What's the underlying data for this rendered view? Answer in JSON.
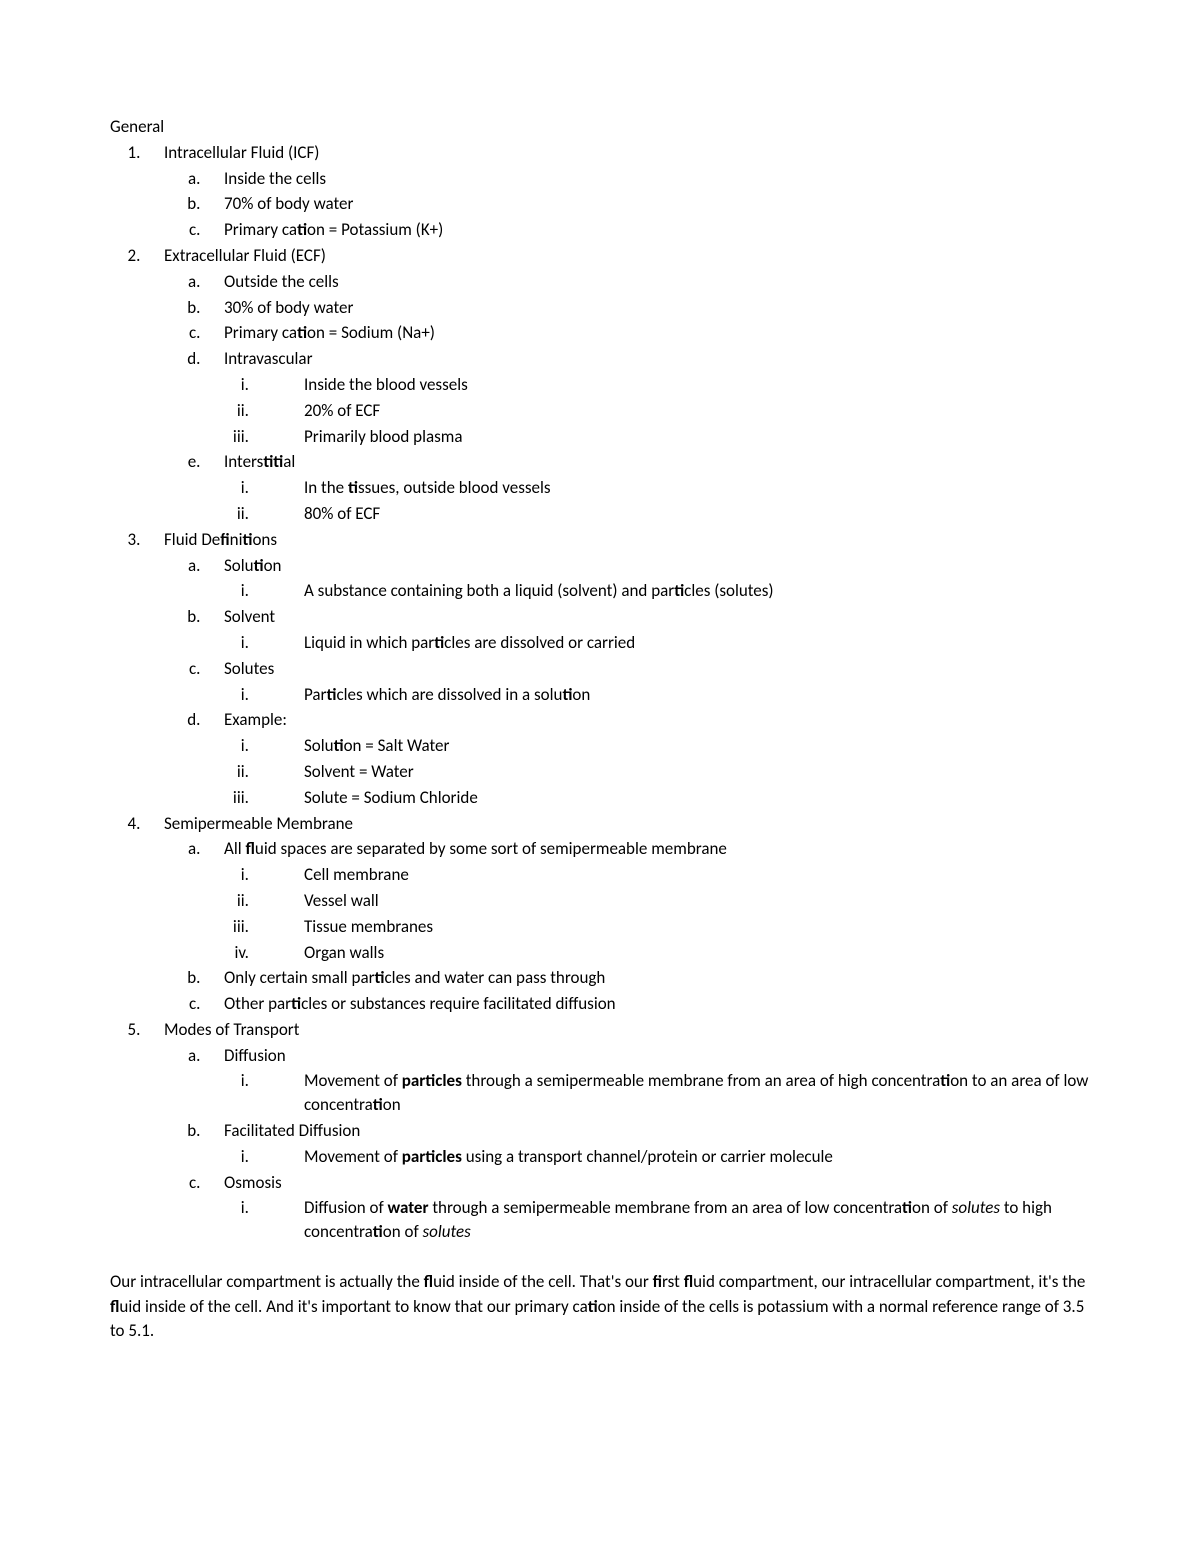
{
  "heading": "General",
  "items": [
    {
      "label": "Intracellular Fluid (ICF)",
      "children": [
        {
          "label": "Inside the cells"
        },
        {
          "label": "70% of body water"
        },
        {
          "label_html": "Primary ca<b>ti</b>on = Potassium (K+)"
        }
      ]
    },
    {
      "label": "Extracellular Fluid (ECF)",
      "children": [
        {
          "label": "Outside the cells"
        },
        {
          "label": "30% of body water"
        },
        {
          "label_html": "Primary ca<b>ti</b>on = Sodium (Na+)"
        },
        {
          "label": "Intravascular",
          "children": [
            {
              "label": "Inside the blood vessels"
            },
            {
              "label": "20% of ECF"
            },
            {
              "label": "Primarily blood plasma"
            }
          ]
        },
        {
          "label_html": "Inters<b>titi</b>al",
          "children": [
            {
              "label_html": "In the <b>ti</b>ssues, outside blood vessels"
            },
            {
              "label": "80% of ECF"
            }
          ]
        }
      ]
    },
    {
      "label_html": "Fluid De<b>fi</b>ni<b>ti</b>ons",
      "children": [
        {
          "label_html": "Solu<b>ti</b>on",
          "children": [
            {
              "label_html": "A substance containing both a liquid (solvent) and par<b>ti</b>cles (solutes)"
            }
          ]
        },
        {
          "label": "Solvent",
          "children": [
            {
              "label_html": "Liquid in which par<b>ti</b>cles are dissolved or carried"
            }
          ]
        },
        {
          "label": "Solutes",
          "children": [
            {
              "label_html": "Par<b>ti</b>cles which are dissolved in a solu<b>ti</b>on"
            }
          ]
        },
        {
          "label": "Example:",
          "children": [
            {
              "label_html": "Solu<b>ti</b>on = Salt Water"
            },
            {
              "label": "Solvent = Water"
            },
            {
              "label": "Solute = Sodium Chloride"
            }
          ]
        }
      ]
    },
    {
      "label": "Semipermeable Membrane",
      "children": [
        {
          "label_html": "All <b>fl</b>uid spaces are separated by some sort of  semipermeable membrane",
          "children": [
            {
              "label": "Cell membrane"
            },
            {
              "label": "Vessel wall"
            },
            {
              "label": "Tissue membranes"
            },
            {
              "label": "Organ walls"
            }
          ]
        },
        {
          "label_html": "Only certain small par<b>ti</b>cles and water can pass through"
        },
        {
          "label_html": "Other par<b>ti</b>cles or substances require facilitated diffusion"
        }
      ]
    },
    {
      "label": "Modes of Transport",
      "children": [
        {
          "label": "Diffusion",
          "children": [
            {
              "label_html": "Movement of <b>particles</b> through a semipermeable membrane from an area of high concentra<b>ti</b>on to an area of low concentra<b>ti</b>on"
            }
          ]
        },
        {
          "label": "Facilitated Diffusion",
          "children": [
            {
              "label_html": "Movement of <b>particles</b> using a transport channel/protein or carrier molecule"
            }
          ]
        },
        {
          "label": "Osmosis",
          "children": [
            {
              "label_html": "Diffusion of <b>water</b> through a semipermeable membrane from an area of low concentra<b>ti</b>on of <em>solutes</em> to high concentra<b>ti</b>on of <em>solutes</em>"
            }
          ]
        }
      ]
    }
  ],
  "paragraph_html": "Our intracellular compartment is actually the <b>fl</b>uid inside of the cell. That's our <b>fi</b>rst <b>fl</b>uid compartment, our intracellular compartment, it's the <b>fl</b>uid inside of the cell. And it's important to know that our primary ca<b>ti</b>on inside of the cells is potassium with a normal reference range of 3.5 to 5.1."
}
